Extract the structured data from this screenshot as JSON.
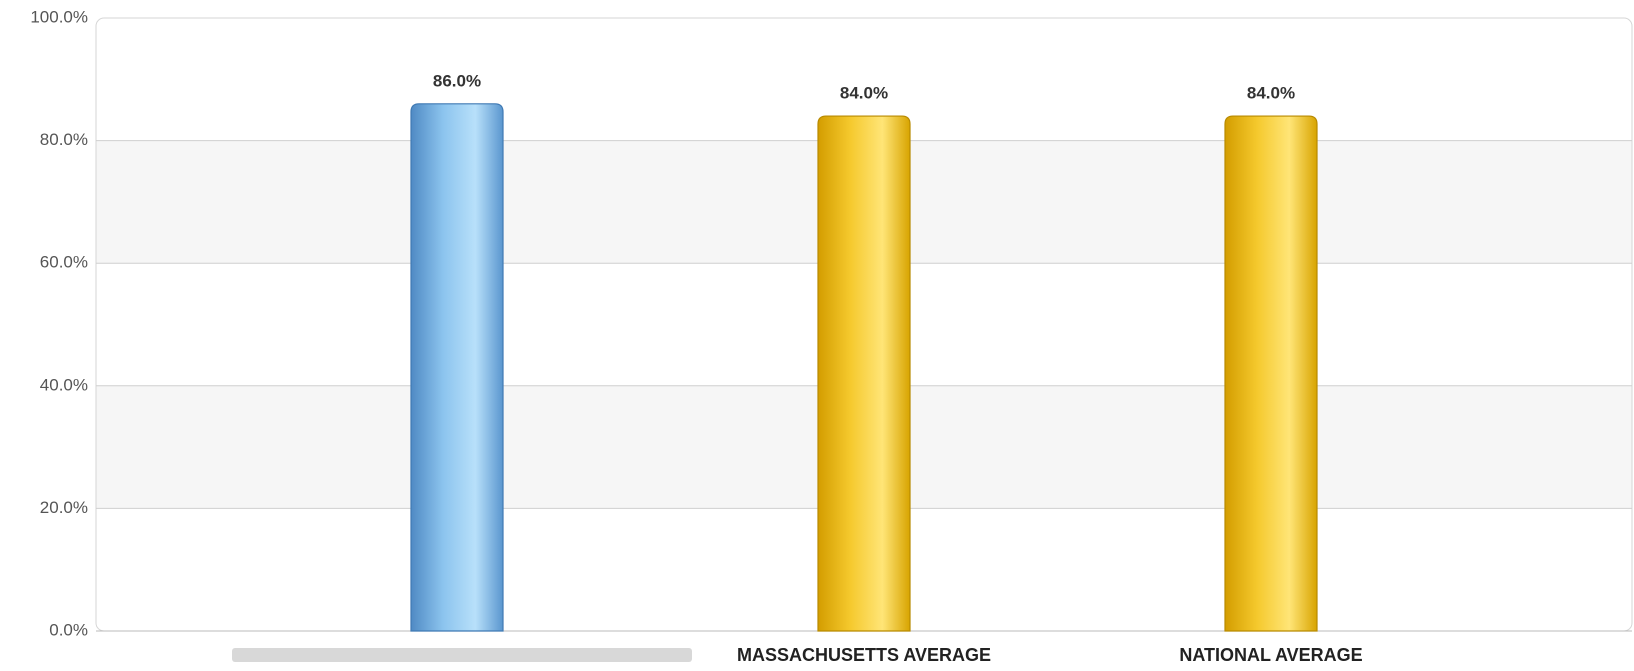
{
  "chart_data": {
    "type": "bar",
    "categories": [
      null,
      "MASSACHUSETTS AVERAGE",
      "NATIONAL AVERAGE"
    ],
    "values": [
      86,
      84,
      84
    ],
    "value_labels": [
      "86.0%",
      "84.0%",
      "84.0%"
    ],
    "colors": [
      "#6aaee3",
      "#f2c42a",
      "#f2c42a"
    ],
    "ylim": [
      0,
      100
    ],
    "yticks": [
      {
        "value": 0,
        "label": "0.0%"
      },
      {
        "value": 20,
        "label": "20.0%"
      },
      {
        "value": 40,
        "label": "40.0%"
      },
      {
        "value": 60,
        "label": "60.0%"
      },
      {
        "value": 80,
        "label": "80.0%"
      },
      {
        "value": 100,
        "label": "100.0%"
      }
    ],
    "grid": true
  }
}
